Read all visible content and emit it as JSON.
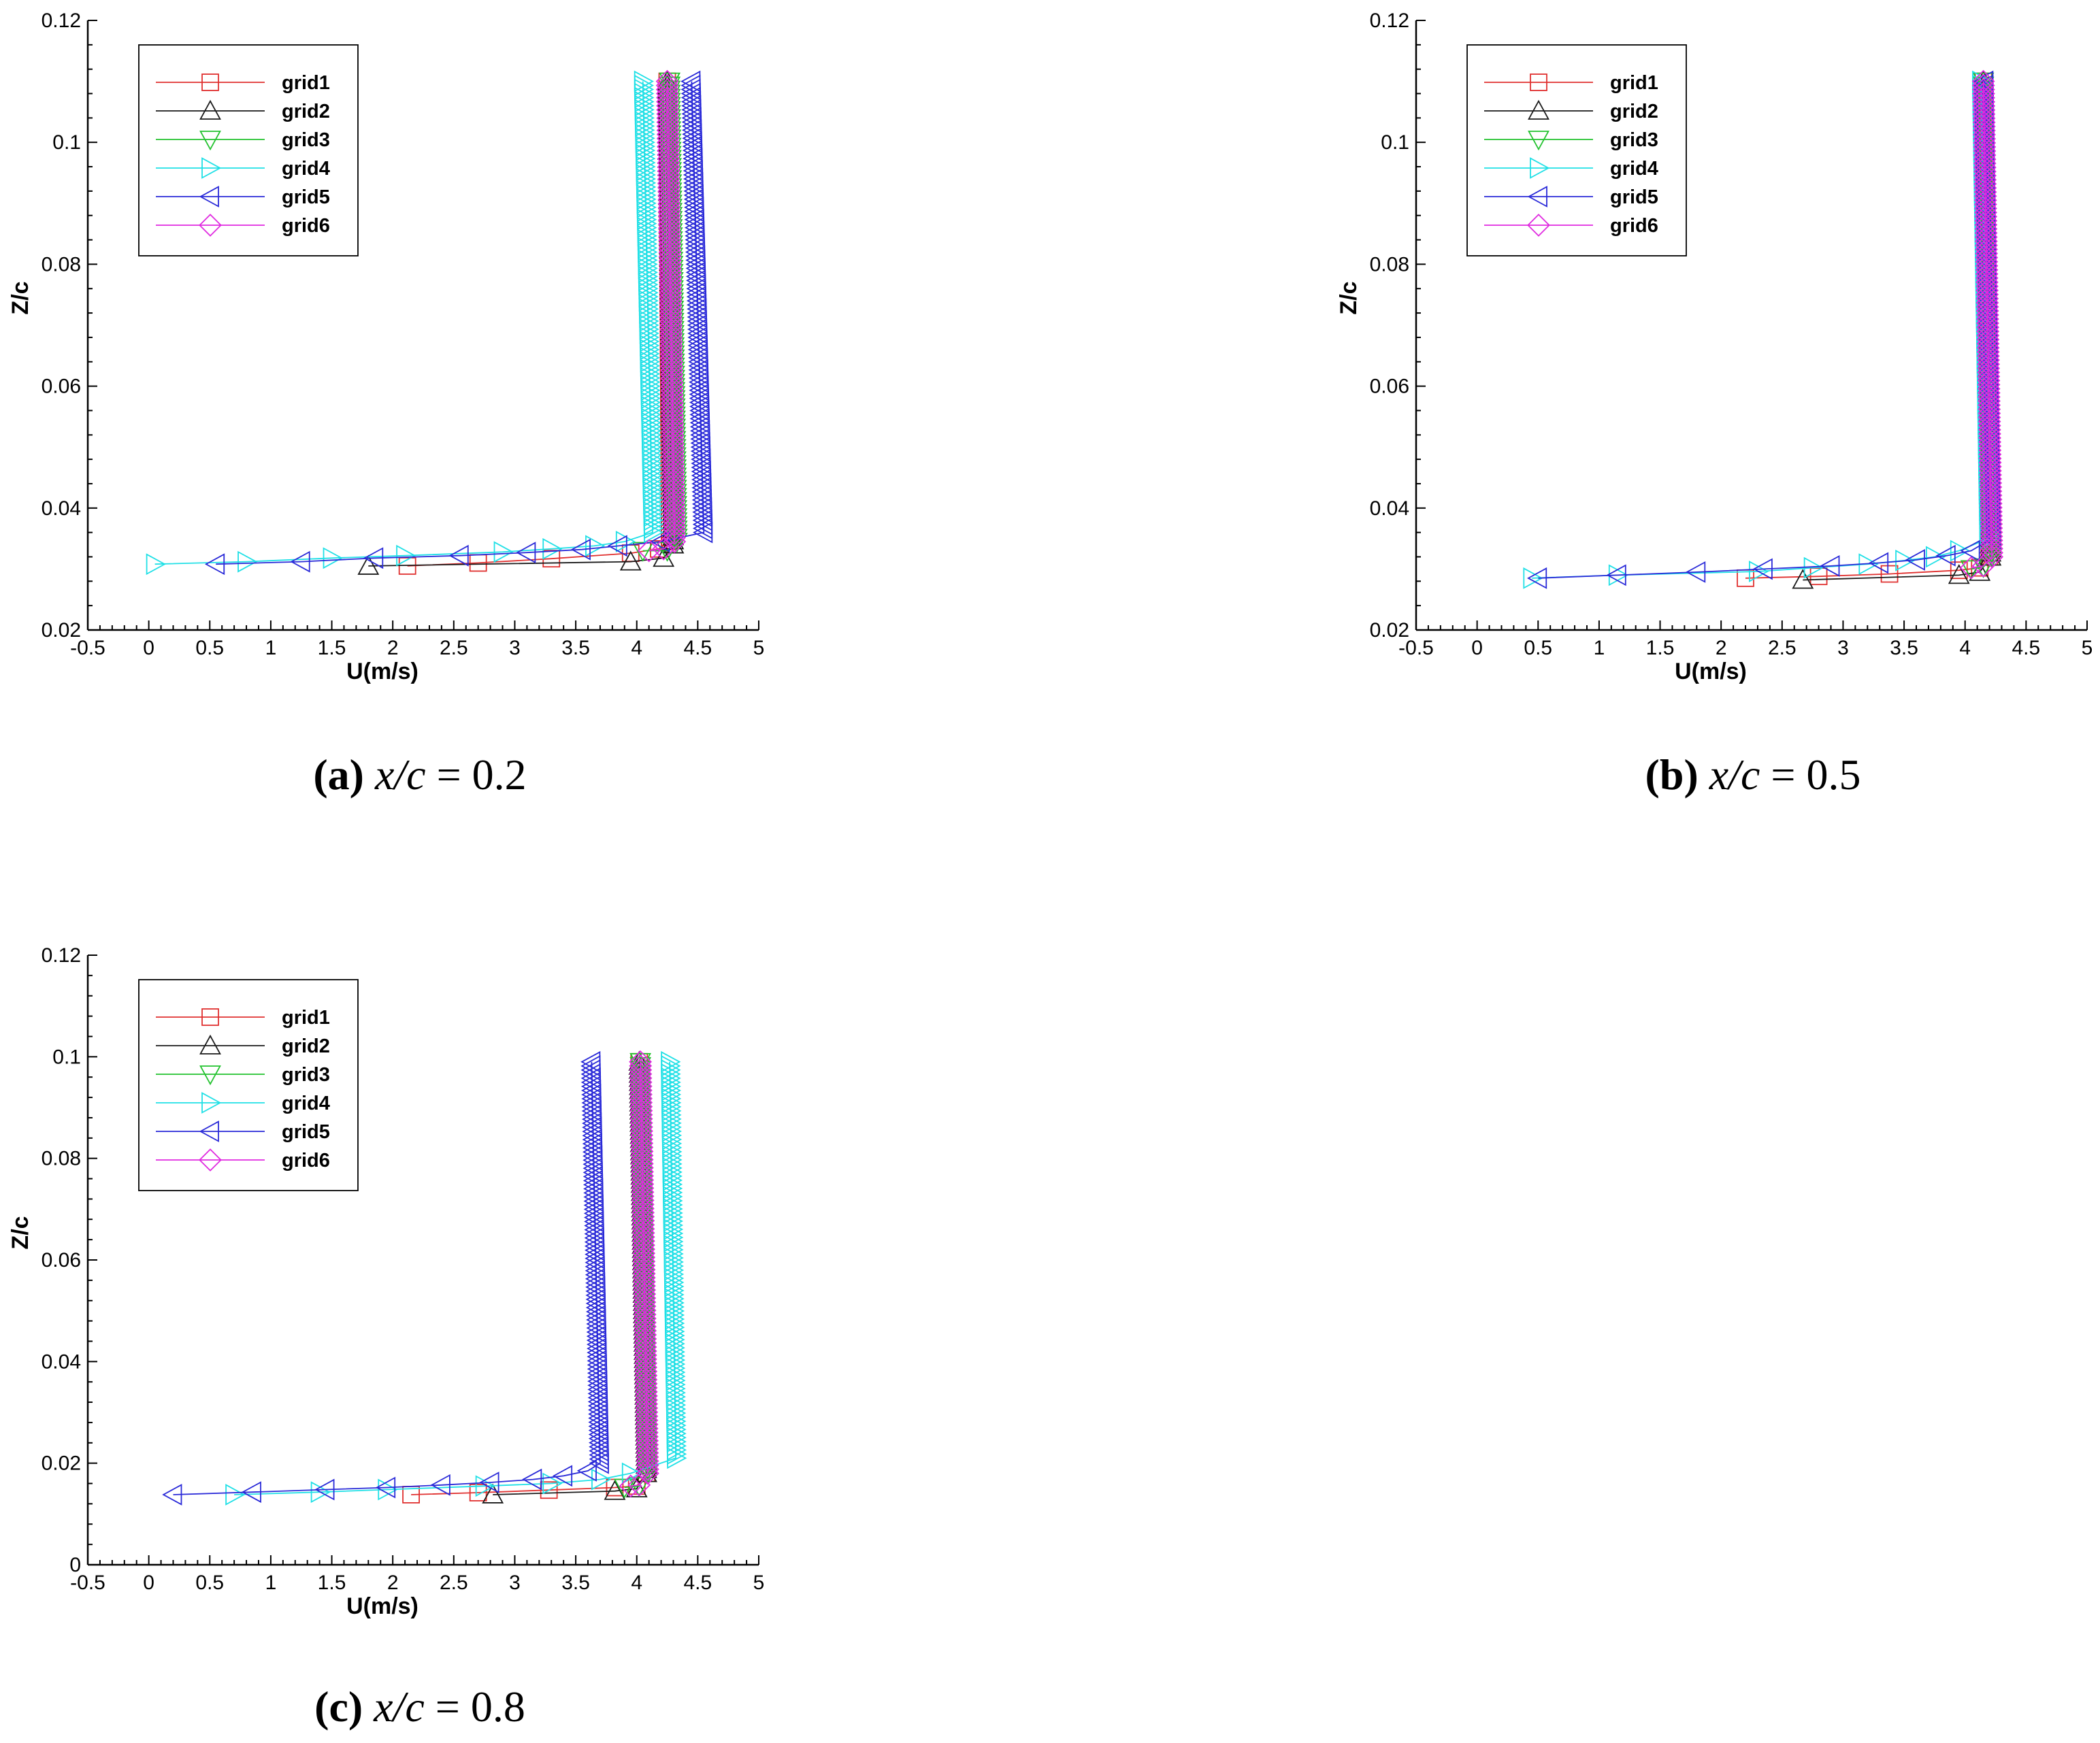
{
  "series_colors": {
    "grid1": "#e0302f",
    "grid2": "#1a1a1a",
    "grid3": "#22c22e",
    "grid4": "#20e0e6",
    "grid5": "#2a2ad8",
    "grid6": "#e02ae0"
  },
  "series_markers": {
    "grid1": "square",
    "grid2": "triangle-up",
    "grid3": "triangle-down",
    "grid4": "triangle-right",
    "grid5": "triangle-left",
    "grid6": "diamond"
  },
  "chart_data": [
    {
      "type": "line",
      "caption": {
        "label": "(a)",
        "var": "x/c",
        "eq": "= 0.2"
      },
      "xlabel": "U(m/s)",
      "ylabel": "Z/c",
      "xlim": [
        -0.5,
        5
      ],
      "ylim": [
        0.02,
        0.12
      ],
      "xticks": [
        "-0.5",
        "0",
        "0.5",
        "1",
        "1.5",
        "2",
        "2.5",
        "3",
        "3.5",
        "4",
        "4.5",
        "5"
      ],
      "yticks": [
        "0.02",
        "0.04",
        "0.06",
        "0.08",
        "0.1",
        "0.12"
      ],
      "legend": "top-left",
      "series": [
        {
          "name": "grid1",
          "wall": [
            [
              2.12,
              0.0305
            ],
            [
              2.7,
              0.031
            ],
            [
              3.3,
              0.0317
            ],
            [
              3.95,
              0.0326
            ],
            [
              4.18,
              0.0333
            ]
          ],
          "knee": [
            4.27,
            0.0345
          ],
          "top": [
            4.25,
            0.11
          ]
        },
        {
          "name": "grid2",
          "wall": [
            [
              1.8,
              0.0305
            ],
            [
              3.95,
              0.0312
            ],
            [
              4.22,
              0.0318
            ]
          ],
          "knee": [
            4.3,
            0.034
          ],
          "top": [
            4.25,
            0.11
          ]
        },
        {
          "name": "grid3",
          "wall": [
            [
              4.05,
              0.033
            ],
            [
              4.25,
              0.033
            ]
          ],
          "knee": [
            4.33,
            0.0345
          ],
          "top": [
            4.27,
            0.11
          ]
        },
        {
          "name": "grid4",
          "wall": [
            [
              0.05,
              0.0308
            ],
            [
              0.8,
              0.0312
            ],
            [
              1.5,
              0.0318
            ],
            [
              2.1,
              0.0322
            ],
            [
              2.9,
              0.0328
            ],
            [
              3.3,
              0.0333
            ],
            [
              3.65,
              0.0338
            ],
            [
              3.9,
              0.0345
            ]
          ],
          "knee": [
            4.13,
            0.036
          ],
          "top": [
            4.05,
            0.11
          ]
        },
        {
          "name": "grid5",
          "wall": [
            [
              0.55,
              0.0308
            ],
            [
              1.25,
              0.0312
            ],
            [
              1.85,
              0.0318
            ],
            [
              2.55,
              0.0322
            ],
            [
              3.1,
              0.0327
            ],
            [
              3.55,
              0.0332
            ],
            [
              3.85,
              0.0338
            ],
            [
              4.2,
              0.0345
            ]
          ],
          "knee": [
            4.55,
            0.036
          ],
          "top": [
            4.45,
            0.11
          ]
        },
        {
          "name": "grid6",
          "wall": [
            [
              4.1,
              0.033
            ],
            [
              4.22,
              0.0333
            ]
          ],
          "knee": [
            4.31,
            0.0345
          ],
          "top": [
            4.25,
            0.11
          ]
        }
      ]
    },
    {
      "type": "line",
      "caption": {
        "label": "(b)",
        "var": "x/c",
        "eq": "= 0.5"
      },
      "xlabel": "U(m/s)",
      "ylabel": "Z/c",
      "xlim": [
        -0.5,
        5
      ],
      "ylim": [
        0.02,
        0.12
      ],
      "xticks": [
        "-0.5",
        "0",
        "0.5",
        "1",
        "1.5",
        "2",
        "2.5",
        "3",
        "3.5",
        "4",
        "4.5",
        "5"
      ],
      "yticks": [
        "0.02",
        "0.04",
        "0.06",
        "0.08",
        "0.1",
        "0.12"
      ],
      "legend": "top-left",
      "series": [
        {
          "name": "grid1",
          "wall": [
            [
              2.2,
              0.0285
            ],
            [
              2.8,
              0.0288
            ],
            [
              3.38,
              0.0292
            ],
            [
              3.95,
              0.0298
            ],
            [
              4.12,
              0.0302
            ]
          ],
          "knee": [
            4.2,
            0.032
          ],
          "top": [
            4.15,
            0.11
          ]
        },
        {
          "name": "grid2",
          "wall": [
            [
              2.67,
              0.0282
            ],
            [
              3.95,
              0.029
            ],
            [
              4.12,
              0.0295
            ]
          ],
          "knee": [
            4.21,
            0.032
          ],
          "top": [
            4.15,
            0.11
          ]
        },
        {
          "name": "grid3",
          "wall": [
            [
              4.05,
              0.03
            ],
            [
              4.15,
              0.0303
            ]
          ],
          "knee": [
            4.22,
            0.032
          ],
          "top": [
            4.15,
            0.11
          ]
        },
        {
          "name": "grid4",
          "wall": [
            [
              0.45,
              0.0285
            ],
            [
              1.15,
              0.029
            ],
            [
              2.3,
              0.0296
            ],
            [
              2.75,
              0.0302
            ],
            [
              3.2,
              0.0308
            ],
            [
              3.5,
              0.0314
            ],
            [
              3.75,
              0.032
            ],
            [
              3.95,
              0.033
            ]
          ],
          "knee": [
            4.19,
            0.035
          ],
          "top": [
            4.13,
            0.11
          ]
        },
        {
          "name": "grid5",
          "wall": [
            [
              0.5,
              0.0285
            ],
            [
              1.15,
              0.029
            ],
            [
              1.8,
              0.0295
            ],
            [
              2.35,
              0.03
            ],
            [
              2.9,
              0.0305
            ],
            [
              3.3,
              0.031
            ],
            [
              3.6,
              0.0315
            ],
            [
              3.85,
              0.0322
            ],
            [
              4.05,
              0.033
            ]
          ],
          "knee": [
            4.22,
            0.035
          ],
          "top": [
            4.16,
            0.11
          ]
        },
        {
          "name": "grid6",
          "wall": [
            [
              4.05,
              0.0302
            ],
            [
              4.15,
              0.0305
            ]
          ],
          "knee": [
            4.22,
            0.032
          ],
          "top": [
            4.15,
            0.11
          ]
        }
      ]
    },
    {
      "type": "line",
      "caption": {
        "label": "(c)",
        "var": "x/c",
        "eq": "= 0.8"
      },
      "xlabel": "U(m/s)",
      "ylabel": "Z/c",
      "xlim": [
        -0.5,
        5
      ],
      "ylim": [
        0,
        0.12
      ],
      "xticks": [
        "-0.5",
        "0",
        "0.5",
        "1",
        "1.5",
        "2",
        "2.5",
        "3",
        "3.5",
        "4",
        "4.5",
        "5"
      ],
      "yticks": [
        "0",
        "0.02",
        "0.04",
        "0.06",
        "0.08",
        "0.1",
        "0.12"
      ],
      "legend": "top-left",
      "series": [
        {
          "name": "grid1",
          "wall": [
            [
              2.15,
              0.0138
            ],
            [
              2.7,
              0.0142
            ],
            [
              3.28,
              0.0147
            ],
            [
              3.82,
              0.0152
            ],
            [
              4.0,
              0.0155
            ]
          ],
          "knee": [
            4.08,
            0.018
          ],
          "top": [
            4.02,
            0.099
          ]
        },
        {
          "name": "grid2",
          "wall": [
            [
              2.82,
              0.0138
            ],
            [
              3.82,
              0.0145
            ],
            [
              4.0,
              0.015
            ]
          ],
          "knee": [
            4.08,
            0.018
          ],
          "top": [
            4.02,
            0.099
          ]
        },
        {
          "name": "grid3",
          "wall": [
            [
              3.9,
              0.0152
            ],
            [
              4.02,
              0.0155
            ]
          ],
          "knee": [
            4.09,
            0.018
          ],
          "top": [
            4.03,
            0.099
          ]
        },
        {
          "name": "grid4",
          "wall": [
            [
              0.7,
              0.0138
            ],
            [
              1.4,
              0.0143
            ],
            [
              1.95,
              0.0148
            ],
            [
              2.75,
              0.0155
            ],
            [
              3.3,
              0.016
            ],
            [
              3.7,
              0.0168
            ],
            [
              3.95,
              0.018
            ]
          ],
          "knee": [
            4.32,
            0.021
          ],
          "top": [
            4.27,
            0.099
          ]
        },
        {
          "name": "grid5",
          "wall": [
            [
              0.2,
              0.0138
            ],
            [
              0.85,
              0.0143
            ],
            [
              1.45,
              0.0148
            ],
            [
              1.95,
              0.0152
            ],
            [
              2.4,
              0.0157
            ],
            [
              2.8,
              0.0162
            ],
            [
              3.15,
              0.0168
            ],
            [
              3.4,
              0.0175
            ],
            [
              3.6,
              0.0185
            ]
          ],
          "knee": [
            3.7,
            0.02
          ],
          "top": [
            3.63,
            0.099
          ]
        },
        {
          "name": "grid6",
          "wall": [
            [
              3.95,
              0.0155
            ],
            [
              4.02,
              0.0157
            ]
          ],
          "knee": [
            4.09,
            0.018
          ],
          "top": [
            4.03,
            0.099
          ]
        }
      ]
    }
  ]
}
